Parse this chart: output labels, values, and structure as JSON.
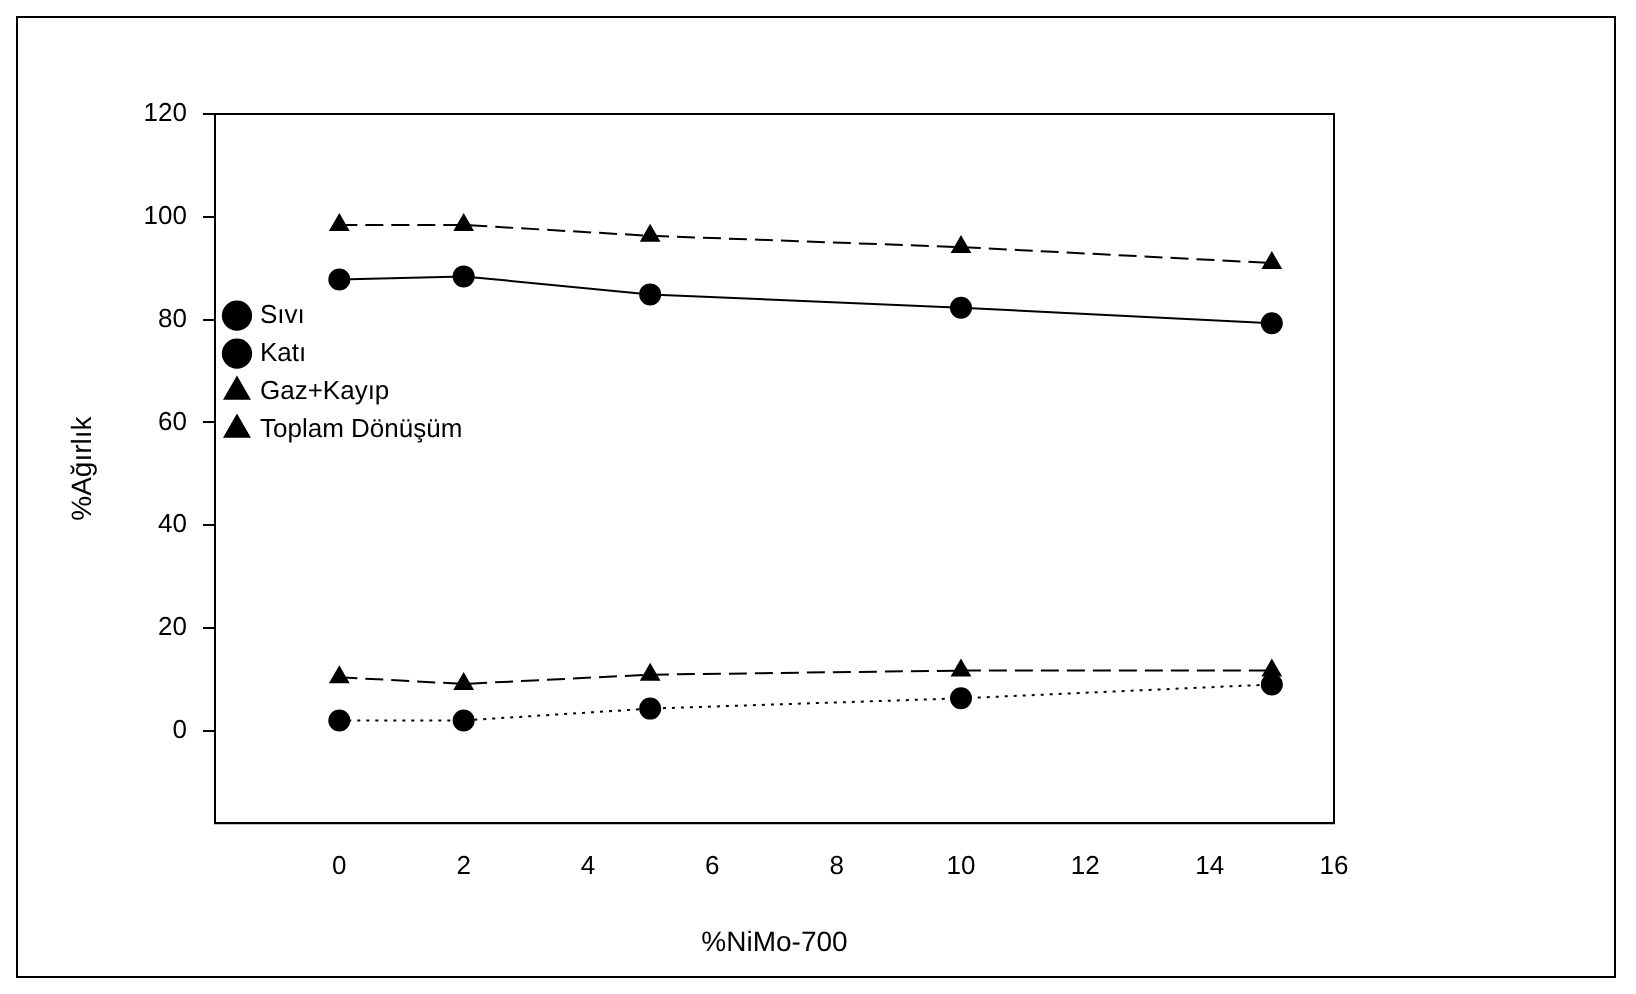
{
  "chart_data": {
    "type": "line",
    "xlabel": "%NiMo-700",
    "ylabel": "%Ağırlık",
    "x": [
      0,
      2,
      5,
      10,
      15
    ],
    "xlim": [
      -2,
      16
    ],
    "xticks": [
      0,
      2,
      4,
      6,
      8,
      10,
      12,
      14,
      16
    ],
    "ylim": [
      -18,
      120
    ],
    "yticks": [
      0,
      20,
      40,
      60,
      80,
      100,
      120
    ],
    "grid": false,
    "legend": "left",
    "series": [
      {
        "name": "Sıvı",
        "color": "#000000",
        "marker": "circle",
        "line_style": "solid",
        "values": [
          87.8,
          88.4,
          84.9,
          82.3,
          79.3
        ]
      },
      {
        "name": "Katı",
        "color": "#000000",
        "marker": "circle",
        "line_style": "dotted",
        "values": [
          2.0,
          2.0,
          4.3,
          6.3,
          9.0
        ]
      },
      {
        "name": "Gaz+Kayıp",
        "color": "#000000",
        "marker": "triangle",
        "line_style": "dashed",
        "values": [
          10.4,
          9.1,
          10.9,
          11.7,
          11.7
        ]
      },
      {
        "name": "Toplam Dönüşüm",
        "color": "#000000",
        "marker": "triangle",
        "line_style": "dashed",
        "values": [
          98.4,
          98.4,
          96.3,
          94.1,
          91.0
        ]
      }
    ]
  }
}
